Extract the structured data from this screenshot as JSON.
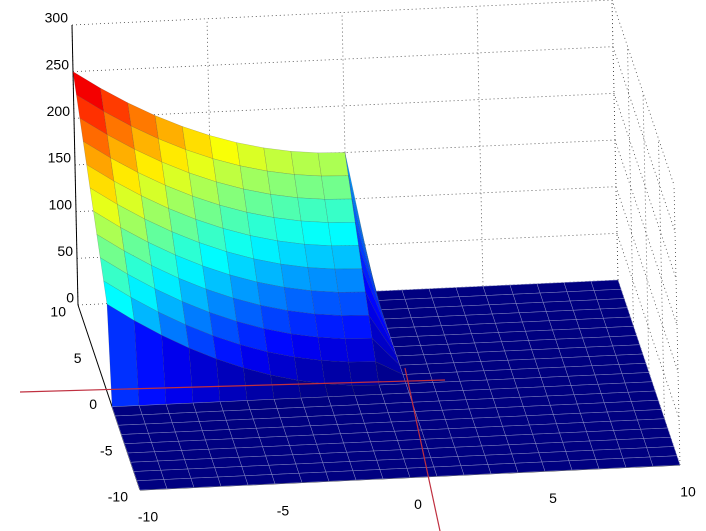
{
  "chart_data": {
    "type": "surface",
    "x": [
      -10,
      -9,
      -8,
      -7,
      -6,
      -5,
      -4,
      -3,
      -2,
      -1,
      0,
      1,
      2,
      3,
      4,
      5,
      6,
      7,
      8,
      9,
      10
    ],
    "y": [
      -10,
      -9,
      -8,
      -7,
      -6,
      -5,
      -4,
      -3,
      -2,
      -1,
      0,
      1,
      2,
      3,
      4,
      5,
      6,
      7,
      8,
      9,
      10
    ],
    "z": [
      [
        0,
        0,
        0,
        0,
        0,
        0,
        0,
        0,
        0,
        0,
        0,
        0,
        0,
        0,
        0,
        0,
        0,
        0,
        0,
        0,
        0
      ],
      [
        0,
        0,
        0,
        0,
        0,
        0,
        0,
        0,
        0,
        0,
        0,
        0,
        0,
        0,
        0,
        0,
        0,
        0,
        0,
        0,
        0
      ],
      [
        0,
        0,
        0,
        0,
        0,
        0,
        0,
        0,
        0,
        0,
        0,
        0,
        0,
        0,
        0,
        0,
        0,
        0,
        0,
        0,
        0
      ],
      [
        0,
        0,
        0,
        0,
        0,
        0,
        0,
        0,
        0,
        0,
        0,
        0,
        0,
        0,
        0,
        0,
        0,
        0,
        0,
        0,
        0
      ],
      [
        0,
        0,
        0,
        0,
        0,
        0,
        0,
        0,
        0,
        0,
        0,
        0,
        0,
        0,
        0,
        0,
        0,
        0,
        0,
        0,
        0
      ],
      [
        0,
        0,
        0,
        0,
        0,
        0,
        0,
        0,
        0,
        0,
        0,
        0,
        0,
        0,
        0,
        0,
        0,
        0,
        0,
        0,
        0
      ],
      [
        0,
        0,
        0,
        0,
        0,
        0,
        0,
        0,
        0,
        0,
        0,
        0,
        0,
        0,
        0,
        0,
        0,
        0,
        0,
        0,
        0
      ],
      [
        0,
        0,
        0,
        0,
        0,
        0,
        0,
        0,
        0,
        0,
        0,
        0,
        0,
        0,
        0,
        0,
        0,
        0,
        0,
        0,
        0
      ],
      [
        0,
        0,
        0,
        0,
        0,
        0,
        0,
        0,
        0,
        0,
        0,
        0,
        0,
        0,
        0,
        0,
        0,
        0,
        0,
        0,
        0
      ],
      [
        0,
        0,
        0,
        0,
        0,
        0,
        0,
        0,
        0,
        0,
        0,
        0,
        0,
        0,
        0,
        0,
        0,
        0,
        0,
        0,
        0
      ],
      [
        100,
        81,
        64,
        49,
        36,
        25,
        16,
        9,
        4,
        1,
        0,
        0,
        0,
        0,
        0,
        0,
        0,
        0,
        0,
        0,
        0
      ],
      [
        115,
        96,
        79,
        64,
        51,
        40,
        31,
        24,
        19,
        16,
        15,
        0,
        0,
        0,
        0,
        0,
        0,
        0,
        0,
        0,
        0
      ],
      [
        130,
        111,
        94,
        79,
        66,
        55,
        46,
        39,
        34,
        31,
        30,
        0,
        0,
        0,
        0,
        0,
        0,
        0,
        0,
        0,
        0
      ],
      [
        145,
        126,
        109,
        94,
        81,
        70,
        61,
        54,
        49,
        46,
        45,
        0,
        0,
        0,
        0,
        0,
        0,
        0,
        0,
        0,
        0
      ],
      [
        160,
        141,
        124,
        109,
        96,
        85,
        76,
        69,
        64,
        61,
        60,
        0,
        0,
        0,
        0,
        0,
        0,
        0,
        0,
        0,
        0
      ],
      [
        175,
        156,
        139,
        124,
        111,
        100,
        91,
        84,
        79,
        76,
        75,
        0,
        0,
        0,
        0,
        0,
        0,
        0,
        0,
        0,
        0
      ],
      [
        190,
        171,
        154,
        139,
        126,
        115,
        106,
        99,
        94,
        91,
        90,
        0,
        0,
        0,
        0,
        0,
        0,
        0,
        0,
        0,
        0
      ],
      [
        205,
        186,
        169,
        154,
        141,
        130,
        121,
        114,
        109,
        106,
        105,
        0,
        0,
        0,
        0,
        0,
        0,
        0,
        0,
        0,
        0
      ],
      [
        220,
        201,
        184,
        169,
        156,
        145,
        136,
        129,
        124,
        121,
        120,
        0,
        0,
        0,
        0,
        0,
        0,
        0,
        0,
        0,
        0
      ],
      [
        235,
        216,
        199,
        184,
        171,
        160,
        151,
        144,
        139,
        136,
        135,
        0,
        0,
        0,
        0,
        0,
        0,
        0,
        0,
        0,
        0
      ],
      [
        250,
        231,
        214,
        199,
        186,
        175,
        166,
        159,
        154,
        151,
        150,
        0,
        0,
        0,
        0,
        0,
        0,
        0,
        0,
        0,
        0
      ]
    ],
    "xlim": [
      -10,
      10
    ],
    "ylim": [
      -10,
      10
    ],
    "zlim": [
      0,
      300
    ],
    "xticks": [
      -10,
      -5,
      0,
      5,
      10
    ],
    "yticks": [
      -10,
      -5,
      0,
      5,
      10
    ],
    "zticks": [
      0,
      50,
      100,
      150,
      200,
      250,
      300
    ],
    "colormap": "jet",
    "grid": true
  }
}
